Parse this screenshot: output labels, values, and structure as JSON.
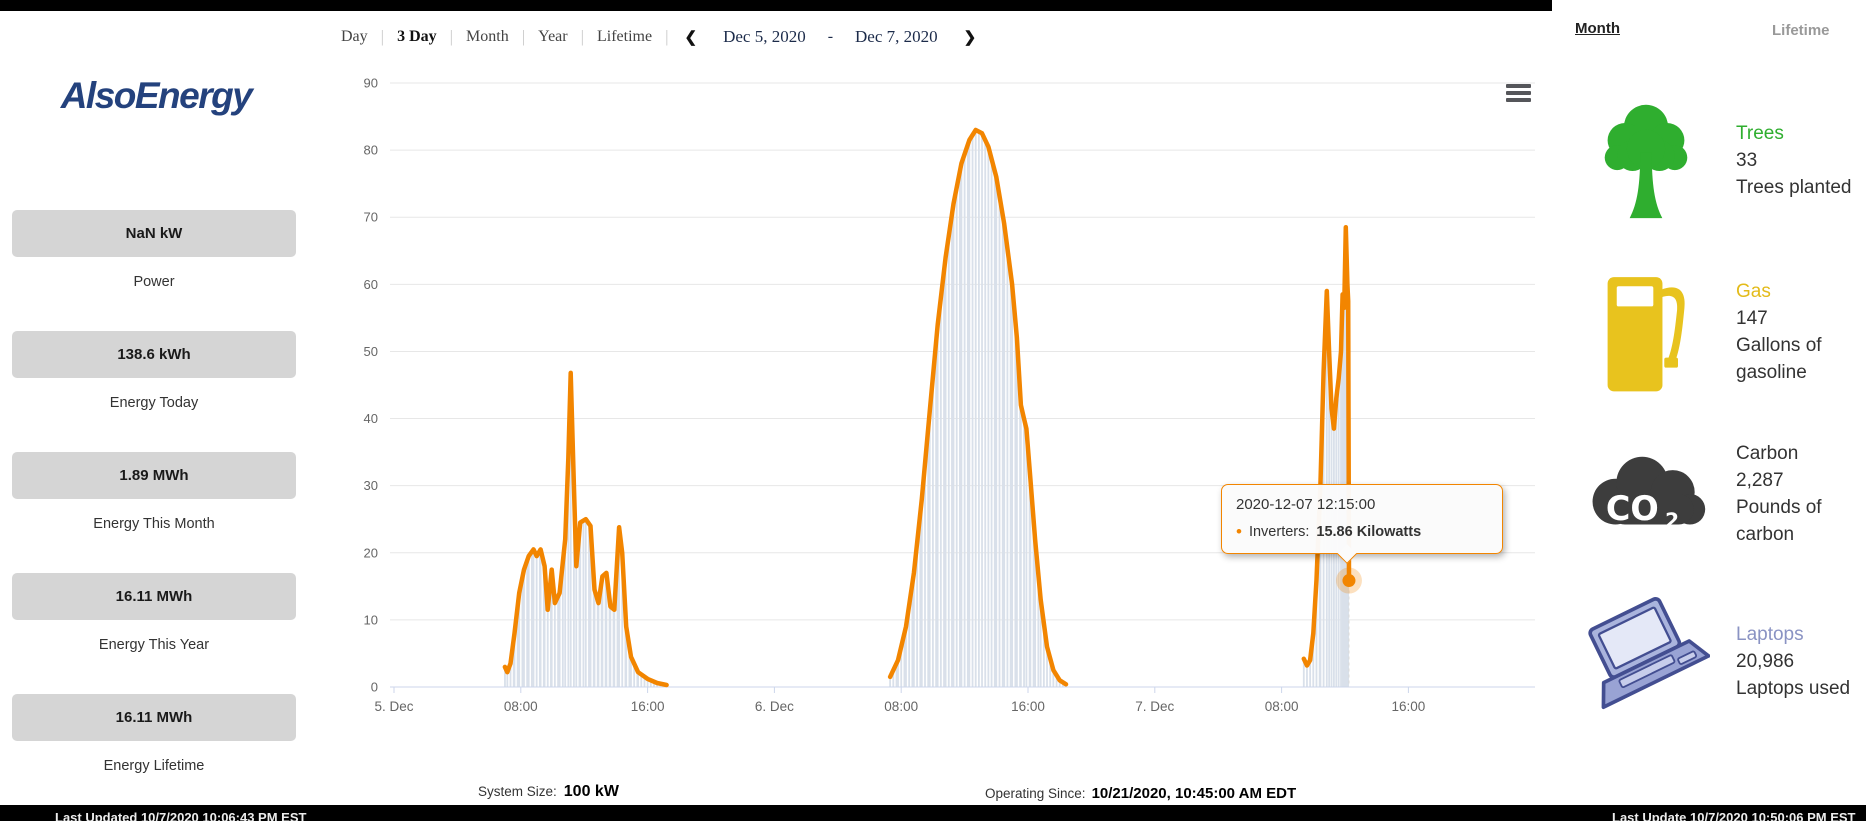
{
  "sidebar": {
    "logo_text": "AlsoEnergy",
    "stats": [
      {
        "value": "NaN kW",
        "label": "Power"
      },
      {
        "value": "138.6 kWh",
        "label": "Energy Today"
      },
      {
        "value": "1.89 MWh",
        "label": "Energy This Month"
      },
      {
        "value": "16.11 MWh",
        "label": "Energy This Year"
      },
      {
        "value": "16.11 MWh",
        "label": "Energy Lifetime"
      }
    ]
  },
  "chart_header": {
    "range_tabs": [
      {
        "label": "Day",
        "active": false
      },
      {
        "label": "3 Day",
        "active": true
      },
      {
        "label": "Month",
        "active": false
      },
      {
        "label": "Year",
        "active": false
      },
      {
        "label": "Lifetime",
        "active": false
      }
    ],
    "tab_separator": "|",
    "prev_icon": "❮",
    "next_icon": "❯",
    "date_start": "Dec 5, 2020",
    "date_separator": "-",
    "date_end": "Dec 7, 2020",
    "menu_icon": "hamburger-menu-icon"
  },
  "chart_data": {
    "type": "line",
    "title": "",
    "xlabel": "",
    "ylabel": "",
    "ylim": [
      0,
      90
    ],
    "ytick_step": 10,
    "x_range_hours": [
      0,
      73
    ],
    "grid": true,
    "legend": "none",
    "xticks": [
      [
        0,
        "5. Dec"
      ],
      [
        8,
        "08:00"
      ],
      [
        16,
        "16:00"
      ],
      [
        24,
        "6. Dec"
      ],
      [
        32,
        "08:00"
      ],
      [
        40,
        "16:00"
      ],
      [
        48,
        "7. Dec"
      ],
      [
        56,
        "08:00"
      ],
      [
        64,
        "16:00"
      ]
    ],
    "column_overlay_color": "#d9e0ea",
    "series": [
      {
        "name": "Inverters",
        "unit": "Kilowatts",
        "color": "#f28500",
        "segments": [
          [
            [
              7.0,
              3
            ],
            [
              7.15,
              2.2
            ],
            [
              7.35,
              3.5
            ],
            [
              7.6,
              8
            ],
            [
              7.9,
              14
            ],
            [
              8.2,
              17.5
            ],
            [
              8.5,
              19.5
            ],
            [
              8.8,
              20.5
            ],
            [
              9.0,
              19.5
            ],
            [
              9.25,
              20.5
            ],
            [
              9.5,
              18
            ],
            [
              9.7,
              11.5
            ],
            [
              9.95,
              17.5
            ],
            [
              10.15,
              12.5
            ],
            [
              10.45,
              14
            ],
            [
              10.8,
              22
            ],
            [
              11.0,
              34
            ],
            [
              11.15,
              46.8
            ],
            [
              11.35,
              30
            ],
            [
              11.5,
              18
            ],
            [
              11.75,
              24.5
            ],
            [
              12.1,
              25
            ],
            [
              12.4,
              24
            ],
            [
              12.65,
              14.5
            ],
            [
              12.9,
              12.5
            ],
            [
              13.15,
              16.5
            ],
            [
              13.4,
              17
            ],
            [
              13.65,
              12
            ],
            [
              13.9,
              11.5
            ],
            [
              14.2,
              23.8
            ],
            [
              14.4,
              20
            ],
            [
              14.65,
              9
            ],
            [
              14.95,
              4.5
            ],
            [
              15.4,
              2.2
            ],
            [
              16.0,
              1.2
            ],
            [
              16.6,
              0.6
            ],
            [
              17.2,
              0.3
            ]
          ],
          [
            [
              31.3,
              1.5
            ],
            [
              31.8,
              4
            ],
            [
              32.3,
              9
            ],
            [
              32.8,
              17
            ],
            [
              33.3,
              28
            ],
            [
              33.8,
              41
            ],
            [
              34.3,
              54
            ],
            [
              34.8,
              64
            ],
            [
              35.3,
              72
            ],
            [
              35.8,
              78
            ],
            [
              36.3,
              81.5
            ],
            [
              36.7,
              83
            ],
            [
              37.1,
              82.5
            ],
            [
              37.5,
              80.5
            ],
            [
              38.0,
              76
            ],
            [
              38.5,
              69
            ],
            [
              39.0,
              60
            ],
            [
              39.3,
              52
            ],
            [
              39.55,
              42
            ],
            [
              39.75,
              40
            ],
            [
              39.9,
              38.5
            ],
            [
              40.15,
              31
            ],
            [
              40.45,
              22
            ],
            [
              40.8,
              13
            ],
            [
              41.2,
              6
            ],
            [
              41.6,
              2.5
            ],
            [
              42.0,
              1
            ],
            [
              42.4,
              0.4
            ]
          ],
          [
            [
              57.4,
              4.2
            ],
            [
              57.6,
              3.2
            ],
            [
              57.8,
              4
            ],
            [
              58.0,
              8
            ],
            [
              58.2,
              16
            ],
            [
              58.45,
              30
            ],
            [
              58.65,
              47
            ],
            [
              58.85,
              59
            ],
            [
              59.0,
              50
            ],
            [
              59.15,
              41.5
            ],
            [
              59.3,
              38.5
            ],
            [
              59.45,
              43
            ],
            [
              59.6,
              46
            ],
            [
              59.75,
              50
            ],
            [
              59.85,
              58.5
            ],
            [
              59.95,
              56.5
            ],
            [
              60.05,
              68.5
            ],
            [
              60.15,
              60
            ],
            [
              60.2,
              57.5
            ],
            [
              60.25,
              15.86
            ]
          ]
        ]
      }
    ],
    "last_point": {
      "h": 60.25,
      "kw": 15.86
    }
  },
  "tooltip": {
    "header": "2020-12-07 12:15:00",
    "bullet": "•",
    "series_label": "Inverters:",
    "value": "15.86 Kilowatts"
  },
  "chart_footer": {
    "system_size_label": "System Size:",
    "system_size_value": "100 kW",
    "operating_label": "Operating Since:",
    "operating_value": "10/21/2020, 10:45:00 AM EDT"
  },
  "eco_panel": {
    "tabs": [
      {
        "label": "Month",
        "active": true
      },
      {
        "label": "Lifetime",
        "active": false
      }
    ],
    "rows": [
      {
        "icon": "tree-icon",
        "title": "Trees",
        "title_color": "#2fae2f",
        "value": "33",
        "unit": "Trees planted"
      },
      {
        "icon": "gas-pump-icon",
        "title": "Gas",
        "title_color": "#e3bb1a",
        "value": "147",
        "unit": "Gallons of gasoline"
      },
      {
        "icon": "co2-cloud-icon",
        "title": "Carbon",
        "title_color": "#333333",
        "value": "2,287",
        "unit": "Pounds of carbon"
      },
      {
        "icon": "laptop-icon",
        "title": "Laptops",
        "title_color": "#8a93c3",
        "value": "20,986",
        "unit": "Laptops used"
      }
    ]
  },
  "statusbar": {
    "left": "Last Updated 10/7/2020 10:06:43 PM EST",
    "right": "Last Update 10/7/2020 10:50:06 PM EST"
  }
}
